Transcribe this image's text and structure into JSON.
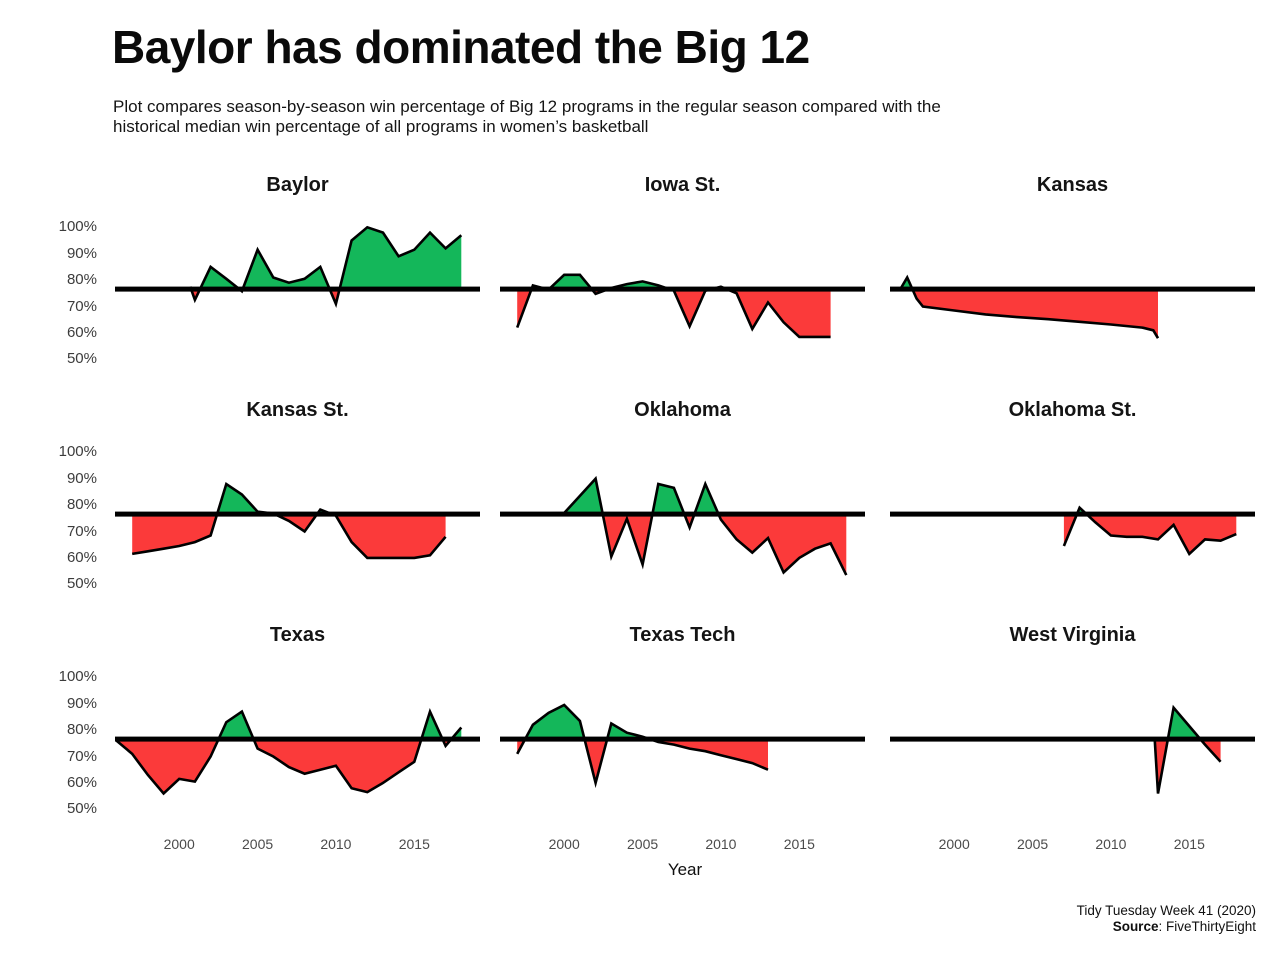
{
  "header": {
    "title": "Baylor has dominated the Big 12",
    "subtitle_lines": [
      "Plot compares season-by-season win percentage of Big 12 programs in the regular season compared with the",
      "historical median win percentage of all programs in women’s basketball"
    ]
  },
  "axes": {
    "y_tick_labels": [
      "100%",
      "90%",
      "80%",
      "70%",
      "60%",
      "50%"
    ],
    "x_tick_labels": [
      "2000",
      "2005",
      "2010",
      "2015"
    ],
    "x_axis_title": "Year"
  },
  "caption": {
    "line1": "Tidy Tuesday Week 41 (2020)",
    "source_label": "Source",
    "source_value": ": FiveThirtyEight"
  },
  "colors": {
    "above_median": "#14b75a",
    "below_median": "#fb3a3a",
    "data_line": "#000000",
    "median_line": "#000000"
  },
  "chart_data": {
    "type": "area",
    "layout": "3x3 small multiples, shared axes",
    "title": "Baylor has dominated the Big 12",
    "xlabel": "Year",
    "ylabel": "",
    "x_domain": [
      1996,
      2019
    ],
    "y_domain": [
      50,
      100
    ],
    "x_ticks": [
      2000,
      2005,
      2010,
      2015
    ],
    "y_ticks": [
      100,
      90,
      80,
      70,
      60,
      50
    ],
    "median_win_pct": 76.6,
    "grid": false,
    "legend": false,
    "fill_rule": "green above historical median, red below",
    "series": [
      {
        "team": "Baylor",
        "points": [
          [
            2000.7,
            77.5
          ],
          [
            2001,
            72.5
          ],
          [
            2002,
            85
          ],
          [
            2003,
            80.5
          ],
          [
            2004,
            75.8
          ],
          [
            2005,
            91.5
          ],
          [
            2006,
            81
          ],
          [
            2007,
            79
          ],
          [
            2008,
            80.5
          ],
          [
            2009,
            85
          ],
          [
            2010,
            71
          ],
          [
            2011,
            95
          ],
          [
            2012,
            100
          ],
          [
            2013,
            98
          ],
          [
            2014,
            89
          ],
          [
            2015,
            91.5
          ],
          [
            2016,
            98
          ],
          [
            2017,
            92
          ],
          [
            2018,
            97
          ]
        ]
      },
      {
        "team": "Iowa St.",
        "points": [
          [
            1997,
            62
          ],
          [
            1998,
            78
          ],
          [
            1999,
            76.4
          ],
          [
            2000,
            82
          ],
          [
            2001,
            82
          ],
          [
            2002,
            74.8
          ],
          [
            2003,
            77
          ],
          [
            2004,
            78.5
          ],
          [
            2005,
            79.5
          ],
          [
            2006,
            78
          ],
          [
            2007,
            76
          ],
          [
            2008,
            62.5
          ],
          [
            2009,
            76
          ],
          [
            2010,
            77.5
          ],
          [
            2011,
            75
          ],
          [
            2012,
            61.5
          ],
          [
            2013,
            71.5
          ],
          [
            2014,
            64
          ],
          [
            2015,
            58.5
          ],
          [
            2016,
            58.5
          ],
          [
            2017,
            58.5
          ]
        ]
      },
      {
        "team": "Kansas",
        "points": [
          [
            1996.6,
            77
          ],
          [
            1997,
            81
          ],
          [
            1997.6,
            73
          ],
          [
            1998,
            70
          ],
          [
            2000,
            68.5
          ],
          [
            2002,
            67
          ],
          [
            2004,
            66
          ],
          [
            2006,
            65.2
          ],
          [
            2008,
            64.2
          ],
          [
            2010,
            63.2
          ],
          [
            2012,
            62
          ],
          [
            2012.7,
            61
          ],
          [
            2013,
            58
          ]
        ]
      },
      {
        "team": "Kansas St.",
        "points": [
          [
            1997,
            61.5
          ],
          [
            1998,
            62.5
          ],
          [
            1999,
            63.5
          ],
          [
            2000,
            64.5
          ],
          [
            2001,
            66
          ],
          [
            2002,
            68.5
          ],
          [
            2003,
            88
          ],
          [
            2004,
            84
          ],
          [
            2005,
            77.5
          ],
          [
            2006,
            76.8
          ],
          [
            2007,
            74
          ],
          [
            2008,
            70
          ],
          [
            2009,
            78.3
          ],
          [
            2010,
            76
          ],
          [
            2011,
            66
          ],
          [
            2012,
            60
          ],
          [
            2013,
            60
          ],
          [
            2014,
            60
          ],
          [
            2015,
            60
          ],
          [
            2016,
            61
          ],
          [
            2017,
            68
          ]
        ]
      },
      {
        "team": "Oklahoma",
        "points": [
          [
            1996.5,
            76.8
          ],
          [
            1998,
            76.8
          ],
          [
            2000,
            77
          ],
          [
            2001,
            83.5
          ],
          [
            2002,
            90
          ],
          [
            2003,
            60.5
          ],
          [
            2004,
            74.8
          ],
          [
            2005,
            57.5
          ],
          [
            2006,
            88
          ],
          [
            2007,
            86.5
          ],
          [
            2008,
            71.5
          ],
          [
            2009,
            88
          ],
          [
            2010,
            74.5
          ],
          [
            2011,
            67
          ],
          [
            2012,
            62
          ],
          [
            2013,
            67.5
          ],
          [
            2014,
            54.5
          ],
          [
            2015,
            60
          ],
          [
            2016,
            63.5
          ],
          [
            2017,
            65.5
          ],
          [
            2018,
            53.5
          ]
        ]
      },
      {
        "team": "Oklahoma St.",
        "points": [
          [
            2007,
            64.5
          ],
          [
            2008,
            79
          ],
          [
            2009,
            73.5
          ],
          [
            2010,
            68.5
          ],
          [
            2011,
            68
          ],
          [
            2012,
            68
          ],
          [
            2013,
            67
          ],
          [
            2014,
            72.5
          ],
          [
            2015,
            61.5
          ],
          [
            2016,
            67
          ],
          [
            2017,
            66.5
          ],
          [
            2018,
            69
          ]
        ]
      },
      {
        "team": "Texas",
        "points": [
          [
            1996,
            76
          ],
          [
            1997,
            71
          ],
          [
            1998,
            63
          ],
          [
            1999,
            56
          ],
          [
            2000,
            61.5
          ],
          [
            2001,
            60.5
          ],
          [
            2002,
            70
          ],
          [
            2003,
            83
          ],
          [
            2004,
            87
          ],
          [
            2005,
            73
          ],
          [
            2006,
            70
          ],
          [
            2007,
            66
          ],
          [
            2008,
            63.5
          ],
          [
            2009,
            65
          ],
          [
            2010,
            66.5
          ],
          [
            2011,
            58
          ],
          [
            2012,
            56.5
          ],
          [
            2013,
            60
          ],
          [
            2014,
            64
          ],
          [
            2015,
            68
          ],
          [
            2016,
            87
          ],
          [
            2017,
            74
          ],
          [
            2018,
            81
          ]
        ]
      },
      {
        "team": "Texas Tech",
        "points": [
          [
            1997,
            71
          ],
          [
            1998,
            82
          ],
          [
            1999,
            86.5
          ],
          [
            2000,
            89.5
          ],
          [
            2001,
            83.5
          ],
          [
            2002,
            60
          ],
          [
            2003,
            82.5
          ],
          [
            2004,
            79
          ],
          [
            2005,
            77.5
          ],
          [
            2006,
            75.5
          ],
          [
            2007,
            74.5
          ],
          [
            2008,
            73
          ],
          [
            2009,
            72
          ],
          [
            2010,
            70.5
          ],
          [
            2011,
            69
          ],
          [
            2012,
            67.5
          ],
          [
            2013,
            65
          ]
        ]
      },
      {
        "team": "West Virginia",
        "points": [
          [
            2012.8,
            76
          ],
          [
            2013,
            56
          ],
          [
            2014,
            88.5
          ],
          [
            2015,
            81.5
          ],
          [
            2016,
            74.5
          ],
          [
            2017,
            68
          ]
        ]
      }
    ]
  }
}
